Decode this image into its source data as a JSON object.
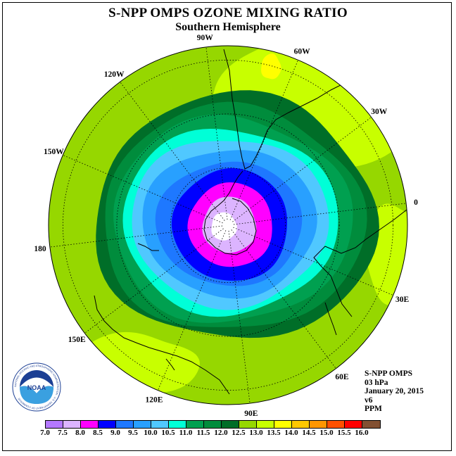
{
  "title": "S-NPP OMPS OZONE MIXING RATIO",
  "subtitle": "Southern Hemisphere",
  "longitude_labels": [
    "90W",
    "60W",
    "30W",
    "0",
    "30E",
    "60E",
    "90E",
    "120E",
    "150E",
    "180",
    "150W",
    "120W"
  ],
  "info": {
    "instrument": "S-NPP OMPS",
    "level": "03 hPa",
    "date": "January 20, 2015",
    "version": "v6",
    "units": "PPM"
  },
  "logo": {
    "text": "NOAA",
    "ring_text": "NATIONAL OCEANIC AND ATMOSPHERIC ADMINISTRATION · U.S. DEPARTMENT OF COMMERCE"
  },
  "colorbar": {
    "labels": [
      "7.0",
      "7.5",
      "8.0",
      "8.5",
      "9.0",
      "9.5",
      "10.0",
      "10.5",
      "11.0",
      "11.5",
      "12.0",
      "12.5",
      "13.0",
      "13.5",
      "14.0",
      "14.5",
      "15.0",
      "15.5",
      "16.0"
    ],
    "colors": [
      "#b478ff",
      "#dcb4ff",
      "#ff00ff",
      "#0000ff",
      "#1e78ff",
      "#28a0ff",
      "#50c8ff",
      "#00ffd7",
      "#00a050",
      "#008c3c",
      "#006e28",
      "#96d700",
      "#c8ff00",
      "#ffff00",
      "#ffc800",
      "#ff9600",
      "#ff5000",
      "#ff0000",
      "#825032"
    ]
  },
  "map_colors": {
    "white_center": "#ffffff",
    "lavender": "#dcb4ff",
    "magenta": "#ff00ff",
    "blue": "#0000ff",
    "mid_blue": "#1e78ff",
    "light_blue": "#28a0ff",
    "sky_blue": "#50c8ff",
    "cyan": "#00ffd7",
    "green": "#00a050",
    "dark_green": "#008c3c",
    "darkest_green": "#006e28",
    "yellow_green": "#96d700",
    "chartreuse": "#c8ff00",
    "yellow": "#ffff00"
  }
}
